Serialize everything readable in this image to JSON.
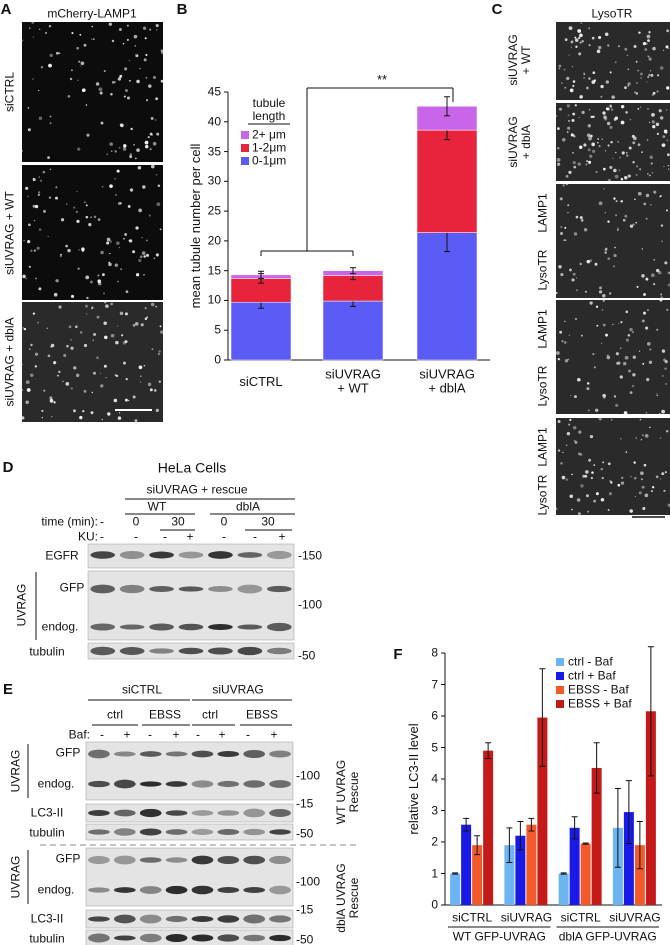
{
  "chart_data": [
    {
      "type": "stacked_bar",
      "panel_label": "B",
      "categories": [
        "siCTRL",
        "siUVRAG\n+ WT",
        "siUVRAG\n+ dblA"
      ],
      "y_label": "mean tubule number per cell",
      "legend_title": "tubule length",
      "annotation": "**",
      "ylim": [
        0,
        45
      ],
      "yticks": [
        0,
        5,
        10,
        15,
        20,
        25,
        30,
        35,
        40,
        45
      ],
      "series": [
        {
          "name": "0-1μm",
          "color": "#5b5bf5",
          "values": [
            9.7,
            9.9,
            21.4
          ],
          "errors": [
            1.0,
            0.9,
            3.2
          ]
        },
        {
          "name": "1-2μm",
          "color": "#e8243c",
          "values": [
            4.0,
            4.3,
            17.2
          ],
          "errors": [
            0.8,
            0.7,
            1.6
          ]
        },
        {
          "name": "2+ μm",
          "color": "#c965e8",
          "values": [
            0.6,
            0.8,
            4.0
          ],
          "errors": [
            0.6,
            0.5,
            1.6
          ]
        }
      ]
    },
    {
      "type": "bar",
      "panel_label": "F",
      "categories": [
        "siCTRL",
        "siUVRAG",
        "siCTRL",
        "siUVRAG"
      ],
      "groups": [
        "WT GFP-UVRAG",
        "dblA GFP-UVRAG"
      ],
      "y_label": "relative LC3-II level",
      "ylim": [
        0,
        8
      ],
      "yticks": [
        0,
        1,
        2,
        3,
        4,
        5,
        6,
        7,
        8
      ],
      "series": [
        {
          "name": "ctrl - Baf",
          "color": "#6cb4f2",
          "values": [
            1.0,
            1.9,
            1.0,
            2.45
          ],
          "errors": [
            0.02,
            0.55,
            0.02,
            1.25
          ]
        },
        {
          "name": "ctrl + Baf",
          "color": "#1a1ae6",
          "values": [
            2.55,
            2.2,
            2.45,
            2.95
          ],
          "errors": [
            0.2,
            0.45,
            0.35,
            1.0
          ]
        },
        {
          "name": "EBSS - Baf",
          "color": "#f25a2a",
          "values": [
            1.9,
            2.55,
            1.95,
            1.9
          ],
          "errors": [
            0.3,
            0.2,
            0.02,
            0.75
          ]
        },
        {
          "name": "EBSS + Baf",
          "color": "#c41a1a",
          "values": [
            4.9,
            5.95,
            4.35,
            6.15
          ],
          "errors": [
            0.25,
            1.55,
            0.8,
            2.05
          ]
        }
      ]
    }
  ],
  "panel_a": {
    "label": "A",
    "title": "mCherry-LAMP1",
    "rows": [
      "siCTRL",
      "siUVRAG + WT",
      "siUVRAG + dblA"
    ]
  },
  "panel_c": {
    "label": "C",
    "title": "LysoTR",
    "rows": [
      "siUVRAG\n+ WT",
      "siUVRAG\n+ dblA"
    ],
    "pairs": [
      [
        "LAMP1",
        "LysoTR"
      ],
      [
        "LAMP1",
        "LysoTR"
      ],
      [
        "LAMP1",
        "LysoTR"
      ]
    ]
  },
  "panel_d": {
    "label": "D",
    "cells": "HeLa Cells",
    "treatment": "siUVRAG + rescue",
    "groups": [
      "WT",
      "dblA"
    ],
    "time_label": "time (min):",
    "times": [
      "-",
      "0",
      "30",
      "0",
      "30"
    ],
    "ku_label": "KU:",
    "ku": [
      "-",
      "-",
      "-",
      "+",
      "-",
      "-",
      "+"
    ],
    "blots": [
      "EGFR",
      "UVRAG",
      "GFP",
      "endog.",
      "tubulin"
    ],
    "mw": [
      "-150",
      "-100",
      "-50"
    ]
  },
  "panel_e": {
    "label": "E",
    "groups": [
      "siCTRL",
      "siUVRAG"
    ],
    "conditions": [
      "ctrl",
      "EBSS",
      "ctrl",
      "EBSS"
    ],
    "baf_label": "Baf:",
    "baf": [
      "-",
      "+",
      "-",
      "+",
      "-",
      "+",
      "-",
      "+"
    ],
    "blocks": [
      {
        "protein": "UVRAG",
        "bands": [
          "GFP",
          "endog."
        ],
        "lc3": "LC3-II",
        "loading": "tubulin",
        "mw": [
          "-100",
          "-15",
          "-50"
        ],
        "rescue": "WT UVRAG\nRescue"
      },
      {
        "protein": "UVRAG",
        "bands": [
          "GFP",
          "endog."
        ],
        "lc3": "LC3-II",
        "loading": "tubulin",
        "mw": [
          "-100",
          "-15",
          "-50"
        ],
        "rescue": "dblA UVRAG\nRescue"
      }
    ]
  }
}
